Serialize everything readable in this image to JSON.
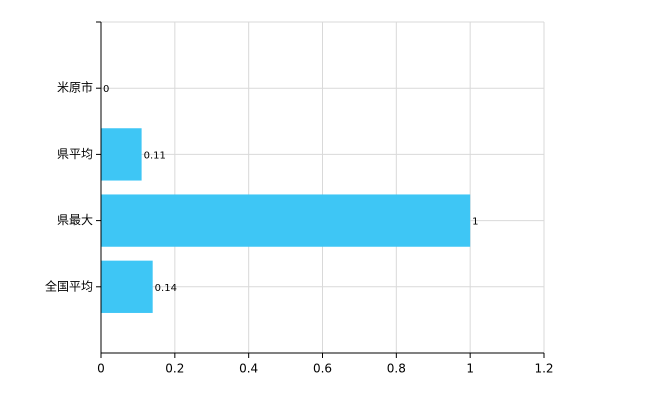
{
  "chart_data": {
    "type": "hbar",
    "categories": [
      "米原市",
      "県平均",
      "県最大",
      "全国平均"
    ],
    "values": [
      0,
      0.11,
      1,
      0.14
    ],
    "color": "#3ec6f5",
    "xlim": [
      0,
      1.2
    ],
    "xticks": [
      0,
      0.2,
      0.4,
      0.6,
      0.8,
      1,
      1.2
    ],
    "grid": true
  }
}
